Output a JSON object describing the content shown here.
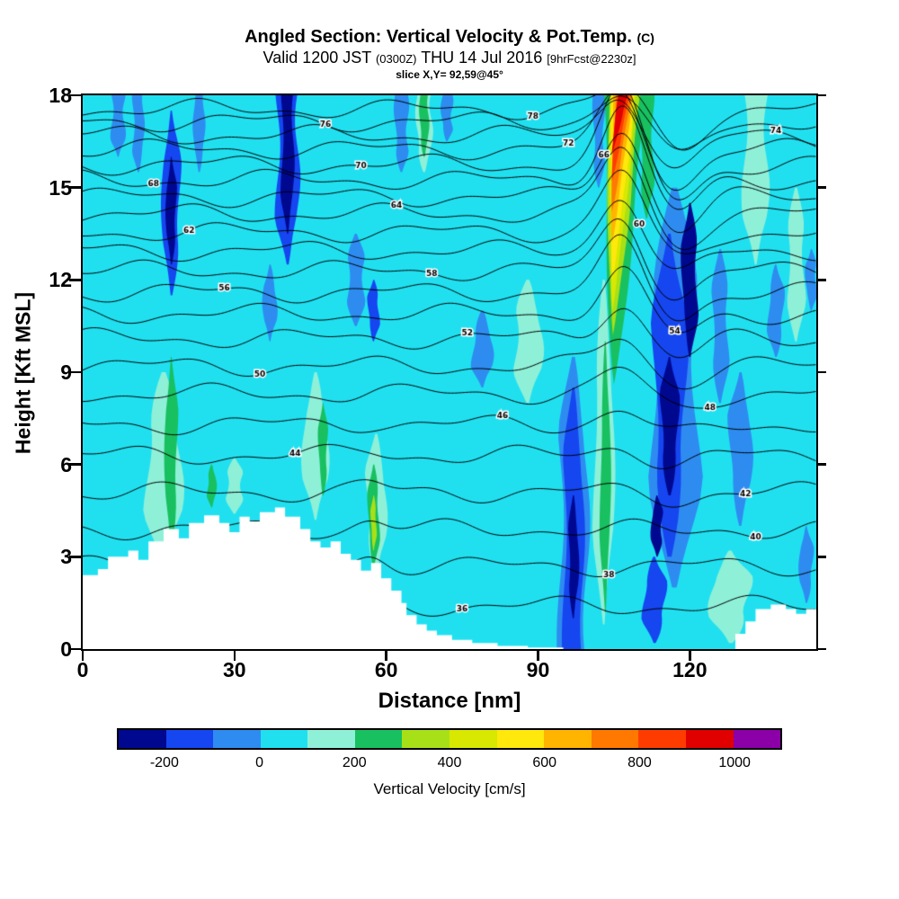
{
  "header": {
    "title": "Angled Section: Vertical Velocity & Pot.Temp.",
    "title_unit": "(C)",
    "valid_prefix": "Valid 1200 JST",
    "valid_z": "(0300Z)",
    "valid_date": "THU 14 Jul 2016",
    "fcst_tag": "[9hrFcst@2230z]",
    "slice_info": "slice X,Y= 92,59@45°"
  },
  "axes": {
    "y_label": "Height [Kft MSL]",
    "y_ticks": [
      0,
      3,
      6,
      9,
      12,
      15,
      18
    ],
    "y_max": 18,
    "x_label": "Distance [nm]",
    "x_ticks": [
      0,
      30,
      60,
      90,
      120
    ],
    "x_max": 145
  },
  "colorbar": {
    "label": "Vertical Velocity [cm/s]",
    "tick_values": [
      -200,
      0,
      200,
      400,
      600,
      800,
      1000
    ],
    "min_value": -300,
    "segment_step": 100,
    "colors": [
      "#000890",
      "#1546F0",
      "#2E8CF0",
      "#20E0F0",
      "#8FF0D8",
      "#18C060",
      "#A8E018",
      "#D8E800",
      "#FFE80C",
      "#FFB400",
      "#FF7800",
      "#FF3C00",
      "#E00000",
      "#8C00A8"
    ]
  },
  "chart_data": {
    "type": "heatmap",
    "title": "Angled Section: Vertical Velocity & Pot.Temp. (C)",
    "subtitle": "Valid 1200 JST (0300Z) THU 14 Jul 2016 [9hrFcst@2230z]",
    "slice": "slice X,Y= 92,59@45°",
    "xlabel": "Distance [nm]",
    "ylabel": "Height [Kft MSL]",
    "fill_field": "Vertical Velocity [cm/s]",
    "contour_field": "Potential Temperature [C]",
    "x_range_nm": [
      0,
      145
    ],
    "y_range_kft": [
      0,
      18
    ],
    "background_value_cms": 50,
    "weak_updraft_patches": [
      {
        "x": 16,
        "top": 9,
        "bot": 2.8,
        "hw": 3.2,
        "value": 150
      },
      {
        "x": 30,
        "top": 6.2,
        "bot": 4.4,
        "hw": 1.5,
        "value": 150
      },
      {
        "x": 46,
        "top": 9,
        "bot": 4.2,
        "hw": 2.2,
        "value": 150
      },
      {
        "x": 58,
        "top": 7,
        "bot": 2.4,
        "hw": 1.8,
        "value": 150
      },
      {
        "x": 67.5,
        "top": 18,
        "bot": 15.5,
        "hw": 1.4,
        "value": 150
      },
      {
        "x": 88,
        "top": 12,
        "bot": 8,
        "hw": 2.5,
        "value": 150
      },
      {
        "x": 103,
        "top": 12,
        "bot": 0.8,
        "hw": 1.8,
        "value": 150
      },
      {
        "x": 128,
        "top": 3.2,
        "bot": 0.2,
        "hw": 3.5,
        "value": 150
      },
      {
        "x": 133,
        "top": 18,
        "bot": 12.5,
        "hw": 2.2,
        "value": 150
      },
      {
        "x": 141,
        "top": 15,
        "bot": 10,
        "hw": 1.6,
        "value": 150
      }
    ],
    "downdrafts": [
      {
        "x": 7,
        "top": 18,
        "bot": 16,
        "hw": 1.2,
        "value": -50
      },
      {
        "x": 11,
        "top": 18,
        "bot": 15.5,
        "hw": 1.0,
        "value": -50
      },
      {
        "x": 17.5,
        "top": 17.5,
        "bot": 11.5,
        "hw": 1.6,
        "value": -150
      },
      {
        "x": 17.5,
        "top": 16,
        "bot": 12.5,
        "hw": 0.9,
        "value": -250
      },
      {
        "x": 23,
        "top": 18,
        "bot": 15.5,
        "hw": 1.0,
        "value": -50
      },
      {
        "x": 40.5,
        "top": 18,
        "bot": 12.5,
        "hw": 2.0,
        "value": -150
      },
      {
        "x": 40.5,
        "top": 18,
        "bot": 13.5,
        "hw": 1.1,
        "value": -250
      },
      {
        "x": 37,
        "top": 12.5,
        "bot": 10,
        "hw": 1.2,
        "value": -50
      },
      {
        "x": 54,
        "top": 13.5,
        "bot": 10.5,
        "hw": 1.6,
        "value": -50
      },
      {
        "x": 57.5,
        "top": 12,
        "bot": 10,
        "hw": 1.0,
        "value": -150
      },
      {
        "x": 63,
        "top": 18,
        "bot": 15.5,
        "hw": 1.2,
        "value": -50
      },
      {
        "x": 72,
        "top": 18,
        "bot": 16.5,
        "hw": 1.0,
        "value": -50
      },
      {
        "x": 79,
        "top": 11,
        "bot": 8.5,
        "hw": 1.8,
        "value": -50
      },
      {
        "x": 97,
        "top": 9.5,
        "bot": 0,
        "hw": 2.6,
        "value": -50
      },
      {
        "x": 97,
        "top": 8.5,
        "bot": 0,
        "hw": 1.8,
        "value": -150
      },
      {
        "x": 97,
        "top": 5,
        "bot": 1,
        "hw": 0.9,
        "value": -250
      },
      {
        "x": 102,
        "top": 18,
        "bot": 15,
        "hw": 1.0,
        "value": -50
      },
      {
        "x": 117,
        "top": 15,
        "bot": 2,
        "hw": 4.5,
        "value": -50
      },
      {
        "x": 116,
        "top": 13.5,
        "bot": 3,
        "hw": 3.0,
        "value": -150
      },
      {
        "x": 116,
        "top": 9.5,
        "bot": 5,
        "hw": 1.6,
        "value": -250
      },
      {
        "x": 120,
        "top": 14.5,
        "bot": 9.5,
        "hw": 1.4,
        "value": -250
      },
      {
        "x": 113.5,
        "top": 5,
        "bot": 3,
        "hw": 1.0,
        "value": -250
      },
      {
        "x": 113,
        "top": 3,
        "bot": 0.2,
        "hw": 2.0,
        "value": -150
      },
      {
        "x": 126,
        "top": 13,
        "bot": 8,
        "hw": 1.5,
        "value": -50
      },
      {
        "x": 130,
        "top": 9,
        "bot": 4,
        "hw": 2.0,
        "value": -50
      },
      {
        "x": 137,
        "top": 12.5,
        "bot": 9.5,
        "hw": 1.4,
        "value": -50
      },
      {
        "x": 144,
        "top": 13,
        "bot": 11,
        "hw": 1.0,
        "value": -50
      },
      {
        "x": 143,
        "top": 4,
        "bot": 1.5,
        "hw": 1.2,
        "value": -50
      }
    ],
    "updrafts": [
      {
        "x": 17.5,
        "top": 9.5,
        "bot": 3.2,
        "hw": 1.1,
        "value": 250
      },
      {
        "x": 25.5,
        "top": 6,
        "bot": 4.6,
        "hw": 0.8,
        "value": 250
      },
      {
        "x": 47.5,
        "top": 8,
        "bot": 5,
        "hw": 0.8,
        "value": 250
      },
      {
        "x": 57.5,
        "top": 6,
        "bot": 2.6,
        "hw": 1.0,
        "value": 250
      },
      {
        "x": 57.5,
        "top": 5,
        "bot": 3.2,
        "hw": 0.5,
        "value": 350
      },
      {
        "x": 67.5,
        "top": 18,
        "bot": 16,
        "hw": 0.8,
        "value": 250
      },
      {
        "x": 103.3,
        "top": 10,
        "bot": 1.2,
        "hw": 0.9,
        "value": 250
      },
      {
        "x": 111.5,
        "top": 18,
        "bot": 14,
        "hw": 1.2,
        "value": 250
      }
    ],
    "plume": {
      "x_nm": 107,
      "top_kft": 18,
      "bottom_kft": 8.6,
      "lean_nm": 2.2,
      "peak_value_cms": 1000,
      "layers": [
        {
          "cx": 107.2,
          "hw": 4.2,
          "bot": 8.6,
          "value": 250
        },
        {
          "cx": 107.0,
          "hw": 3.3,
          "bot": 10.2,
          "value": 350
        },
        {
          "cx": 106.9,
          "hw": 2.6,
          "bot": 11.0,
          "value": 450
        },
        {
          "cx": 106.9,
          "hw": 2.2,
          "bot": 12.0,
          "value": 550
        },
        {
          "cx": 106.8,
          "hw": 1.8,
          "bot": 13.2,
          "value": 650
        },
        {
          "cx": 106.8,
          "hw": 1.5,
          "bot": 14.2,
          "value": 750
        },
        {
          "cx": 106.8,
          "hw": 1.2,
          "bot": 15.2,
          "value": 850
        },
        {
          "cx": 106.8,
          "hw": 0.9,
          "bot": 16.1,
          "value": 950
        }
      ]
    },
    "terrain_profile_nm_kft": [
      [
        0,
        2.4
      ],
      [
        3,
        2.6
      ],
      [
        5,
        3.0
      ],
      [
        9,
        3.2
      ],
      [
        11,
        2.9
      ],
      [
        13,
        3.5
      ],
      [
        16,
        3.9
      ],
      [
        19,
        3.6
      ],
      [
        21,
        4.1
      ],
      [
        24,
        4.35
      ],
      [
        27,
        4.1
      ],
      [
        29,
        3.8
      ],
      [
        31,
        4.3
      ],
      [
        33,
        4.15
      ],
      [
        35,
        4.45
      ],
      [
        38,
        4.6
      ],
      [
        40,
        4.3
      ],
      [
        43,
        3.9
      ],
      [
        45,
        3.5
      ],
      [
        47,
        3.3
      ],
      [
        49,
        3.5
      ],
      [
        51,
        3.1
      ],
      [
        53,
        2.9
      ],
      [
        55,
        2.55
      ],
      [
        57,
        2.8
      ],
      [
        59,
        2.3
      ],
      [
        61,
        1.9
      ],
      [
        63,
        1.5
      ],
      [
        64,
        1.1
      ],
      [
        66,
        0.8
      ],
      [
        68,
        0.6
      ],
      [
        70,
        0.45
      ],
      [
        73,
        0.3
      ],
      [
        77,
        0.2
      ],
      [
        82,
        0.1
      ],
      [
        88,
        0.05
      ],
      [
        95,
        0
      ],
      [
        100,
        0
      ],
      [
        127,
        0
      ],
      [
        129,
        0.5
      ],
      [
        131,
        0.9
      ],
      [
        133,
        1.3
      ],
      [
        136,
        1.45
      ],
      [
        139,
        1.3
      ],
      [
        141,
        1.15
      ],
      [
        143,
        1.3
      ],
      [
        145,
        1.2
      ]
    ],
    "pot_temp_contours": {
      "unit": "C",
      "levels": [
        36,
        38,
        40,
        42,
        44,
        46,
        48,
        50,
        52,
        54,
        56,
        58,
        60,
        62,
        64,
        66,
        68,
        70,
        72,
        74,
        76,
        78
      ],
      "baseline_kft": [
        1.4,
        2.7,
        3.9,
        5.1,
        6.3,
        7.3,
        8.3,
        9.2,
        10.1,
        10.9,
        11.6,
        12.3,
        12.95,
        13.55,
        14.15,
        14.7,
        15.25,
        15.75,
        16.25,
        16.7,
        17.15,
        17.55
      ]
    }
  }
}
